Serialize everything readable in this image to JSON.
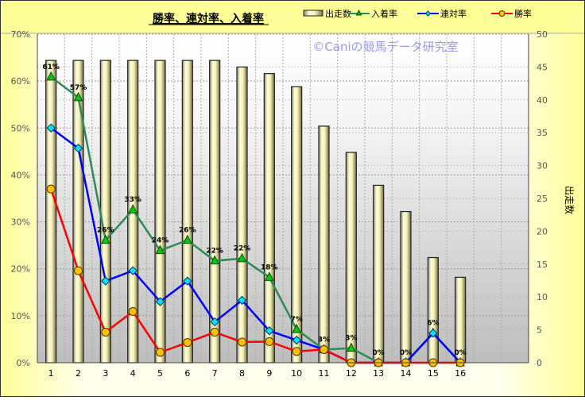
{
  "chart_data": {
    "type": "bar+line",
    "title": "勝率、連対率、入着率",
    "watermark": "©Caniの競馬データ研究室",
    "categories": [
      "1",
      "2",
      "3",
      "4",
      "5",
      "6",
      "7",
      "8",
      "9",
      "10",
      "11",
      "12",
      "13",
      "14",
      "15",
      "16"
    ],
    "category_slots": 18,
    "y_left": {
      "min": 0,
      "max": 70,
      "step": 10,
      "unit": "%",
      "ticks": [
        "0%",
        "10%",
        "20%",
        "30%",
        "40%",
        "50%",
        "60%",
        "70%"
      ]
    },
    "y_right": {
      "min": 0,
      "max": 50,
      "step": 5,
      "label": "出走数",
      "ticks": [
        "0",
        "5",
        "10",
        "15",
        "20",
        "25",
        "30",
        "35",
        "40",
        "45",
        "50"
      ]
    },
    "grid": true,
    "legend_position": "top",
    "bars": {
      "name": "出走数",
      "axis": "right",
      "values": [
        46,
        46,
        46,
        46,
        46,
        46,
        46,
        45,
        44,
        42,
        36,
        32,
        27,
        23,
        16,
        13
      ],
      "color": "#f3f0b8"
    },
    "series": [
      {
        "name": "入着率",
        "axis": "left",
        "color": "#2e8b57",
        "marker": "triangle",
        "marker_color": "#00cc00",
        "values": [
          60.9,
          56.5,
          26.1,
          32.6,
          23.9,
          26.1,
          21.7,
          22.2,
          18.2,
          7.1,
          2.8,
          3.1,
          0,
          0,
          6.3,
          0
        ],
        "labels": [
          "61%",
          "57%",
          "26%",
          "33%",
          "24%",
          "26%",
          "22%",
          "22%",
          "18%",
          "7%",
          "3%",
          "3%",
          "0%",
          "0%",
          "6%",
          "0%"
        ]
      },
      {
        "name": "連対率",
        "axis": "left",
        "color": "#0000ff",
        "marker": "diamond",
        "marker_color": "#00e5ff",
        "values": [
          50.0,
          45.7,
          17.4,
          19.6,
          13.0,
          17.4,
          8.7,
          13.3,
          6.8,
          4.8,
          2.8,
          0,
          0,
          0,
          6.3,
          0
        ]
      },
      {
        "name": "勝率",
        "axis": "left",
        "color": "#ff0000",
        "marker": "circle",
        "marker_color": "#ffc000",
        "values": [
          37.0,
          19.6,
          6.5,
          10.9,
          2.2,
          4.3,
          6.5,
          4.4,
          4.5,
          2.4,
          2.8,
          0,
          0,
          0,
          0,
          0
        ]
      }
    ]
  }
}
